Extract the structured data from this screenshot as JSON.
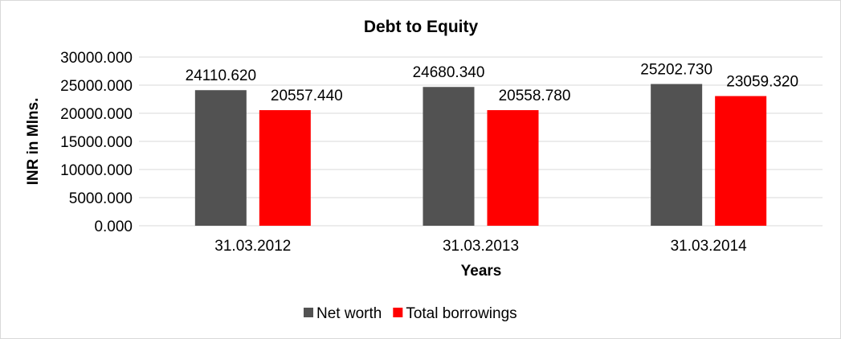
{
  "chart_data": {
    "type": "bar",
    "title": "Debt to Equity",
    "xlabel": "Years",
    "ylabel": "INR in Mlns.",
    "categories": [
      "31.03.2012",
      "31.03.2013",
      "31.03.2014"
    ],
    "series": [
      {
        "name": "Net worth",
        "color": "#525252",
        "values": [
          24110.62,
          24680.34,
          25202.73
        ],
        "labels": [
          "24110.620",
          "24680.340",
          "25202.730"
        ]
      },
      {
        "name": "Total borrowings",
        "color": "#ff0000",
        "values": [
          20557.44,
          20558.78,
          23059.32
        ],
        "labels": [
          "20557.440",
          "20558.780",
          "23059.320"
        ]
      }
    ],
    "ylim": [
      0,
      30000
    ],
    "yticks": [
      0,
      5000,
      10000,
      15000,
      20000,
      25000,
      30000
    ],
    "ytick_labels": [
      "0.000",
      "5000.000",
      "10000.000",
      "15000.000",
      "20000.000",
      "25000.000",
      "30000.000"
    ],
    "grid": true,
    "gridline_color": "#d9d9d9",
    "legend_position": "bottom"
  }
}
